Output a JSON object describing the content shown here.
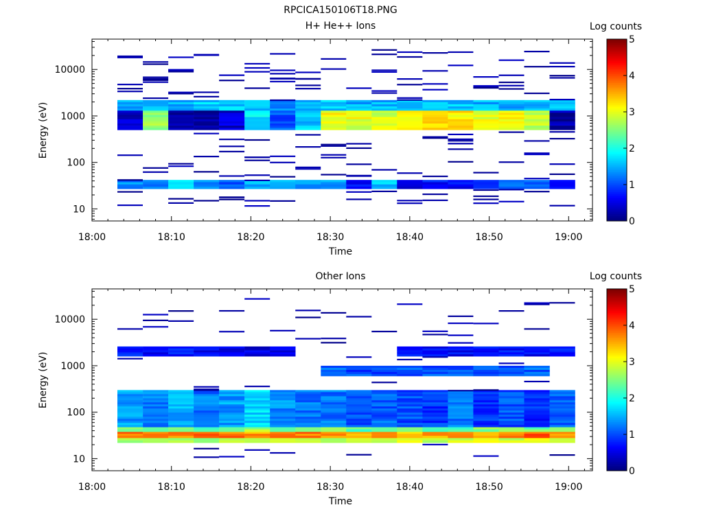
{
  "figure_title": "RPCICA150106T18.PNG",
  "colorbar": {
    "label": "Log counts",
    "min": 0,
    "max": 5,
    "ticks": [
      "0",
      "1",
      "2",
      "3",
      "4",
      "5"
    ],
    "colormap": "jet"
  },
  "chart_data": [
    {
      "type": "heatmap",
      "title": "H+ He++ Ions",
      "xlabel": "Time",
      "ylabel": "Energy (eV)",
      "x_ticks": [
        "18:00",
        "18:10",
        "18:20",
        "18:30",
        "18:40",
        "18:50",
        "19:00"
      ],
      "y_scale": "log",
      "y_ticks": [
        "10",
        "100",
        "1000",
        "10000"
      ],
      "y_range": [
        5.5,
        45000
      ],
      "x_range_min": [
        0,
        63
      ],
      "time_bins_start_min": [
        3.2,
        6.4,
        9.6,
        12.8,
        16.0,
        19.2,
        22.4,
        25.6,
        28.8,
        32.0,
        35.2,
        38.4,
        41.6,
        44.8,
        48.0,
        51.2,
        54.4,
        57.6
      ],
      "time_bin_width_min": 3.2,
      "bands": [
        {
          "e_low": 27,
          "e_high": 42,
          "levels": [
            1.3,
            1.2,
            1.7,
            1.3,
            1.1,
            1.5,
            1.4,
            1.3,
            1.4,
            0.6,
            1.6,
            0.5,
            0.7,
            0.6,
            0.9,
            1.2,
            1.0,
            0.6
          ]
        },
        {
          "e_low": 1300,
          "e_high": 2200,
          "levels": [
            1.4,
            1.5,
            1.5,
            1.6,
            1.6,
            1.5,
            1.4,
            1.5,
            1.6,
            1.5,
            1.5,
            1.6,
            1.6,
            1.6,
            1.5,
            1.4,
            1.5,
            1.6
          ]
        },
        {
          "e_low": 500,
          "e_high": 1300,
          "levels": [
            0.3,
            2.6,
            0.2,
            0.2,
            0.4,
            1.8,
            1.0,
            1.6,
            3.1,
            3.0,
            2.9,
            3.1,
            3.2,
            3.2,
            3.0,
            3.1,
            2.8,
            0.2
          ]
        }
      ]
    },
    {
      "type": "heatmap",
      "title": "Other Ions",
      "xlabel": "Time",
      "ylabel": "Energy (eV)",
      "x_ticks": [
        "18:00",
        "18:10",
        "18:20",
        "18:30",
        "18:40",
        "18:50",
        "19:00"
      ],
      "y_scale": "log",
      "y_ticks": [
        "10",
        "100",
        "1000",
        "10000"
      ],
      "y_range": [
        5.5,
        45000
      ],
      "x_range_min": [
        0,
        63
      ],
      "time_bins_start_min": [
        3.2,
        6.4,
        9.6,
        12.8,
        16.0,
        19.2,
        22.4,
        25.6,
        28.8,
        32.0,
        35.2,
        38.4,
        41.6,
        44.8,
        48.0,
        51.2,
        54.4,
        57.6
      ],
      "time_bin_width_min": 3.2,
      "bands": [
        {
          "e_low": 22,
          "e_high": 28,
          "levels": [
            2.8,
            2.9,
            2.8,
            2.7,
            2.8,
            2.9,
            2.8,
            2.7,
            2.8,
            2.9,
            2.8,
            2.9,
            2.7,
            2.8,
            2.9,
            2.8,
            2.9,
            2.8
          ]
        },
        {
          "e_low": 28,
          "e_high": 38,
          "levels": [
            3.8,
            3.7,
            3.8,
            3.9,
            3.8,
            3.6,
            3.7,
            3.8,
            3.7,
            3.6,
            3.8,
            3.5,
            3.6,
            3.7,
            3.6,
            3.8,
            3.9,
            3.7
          ]
        },
        {
          "e_low": 38,
          "e_high": 48,
          "levels": [
            2.5,
            2.4,
            2.6,
            2.4,
            2.3,
            2.7,
            2.5,
            2.4,
            2.6,
            2.3,
            2.5,
            2.6,
            2.4,
            2.3,
            2.5,
            2.6,
            2.4,
            2.5
          ]
        },
        {
          "e_low": 48,
          "e_high": 300,
          "levels": [
            1.4,
            1.3,
            1.5,
            1.2,
            1.4,
            1.7,
            1.3,
            1.2,
            1.2,
            1.0,
            1.1,
            1.0,
            0.9,
            1.2,
            0.9,
            1.0,
            0.8,
            1.1
          ]
        },
        {
          "e_low": 600,
          "e_high": 1000,
          "levels": [
            0.0,
            0.0,
            0.0,
            0.0,
            0.0,
            0.0,
            0.0,
            0.0,
            1.1,
            1.0,
            1.0,
            1.0,
            1.0,
            1.0,
            1.0,
            1.0,
            1.1,
            0.0
          ]
        },
        {
          "e_low": 1600,
          "e_high": 2600,
          "levels": [
            0.7,
            0.6,
            0.7,
            0.6,
            0.6,
            0.5,
            0.6,
            0.0,
            0.0,
            0.0,
            0.0,
            0.7,
            0.6,
            0.6,
            0.7,
            0.7,
            0.6,
            0.7
          ]
        }
      ]
    }
  ]
}
